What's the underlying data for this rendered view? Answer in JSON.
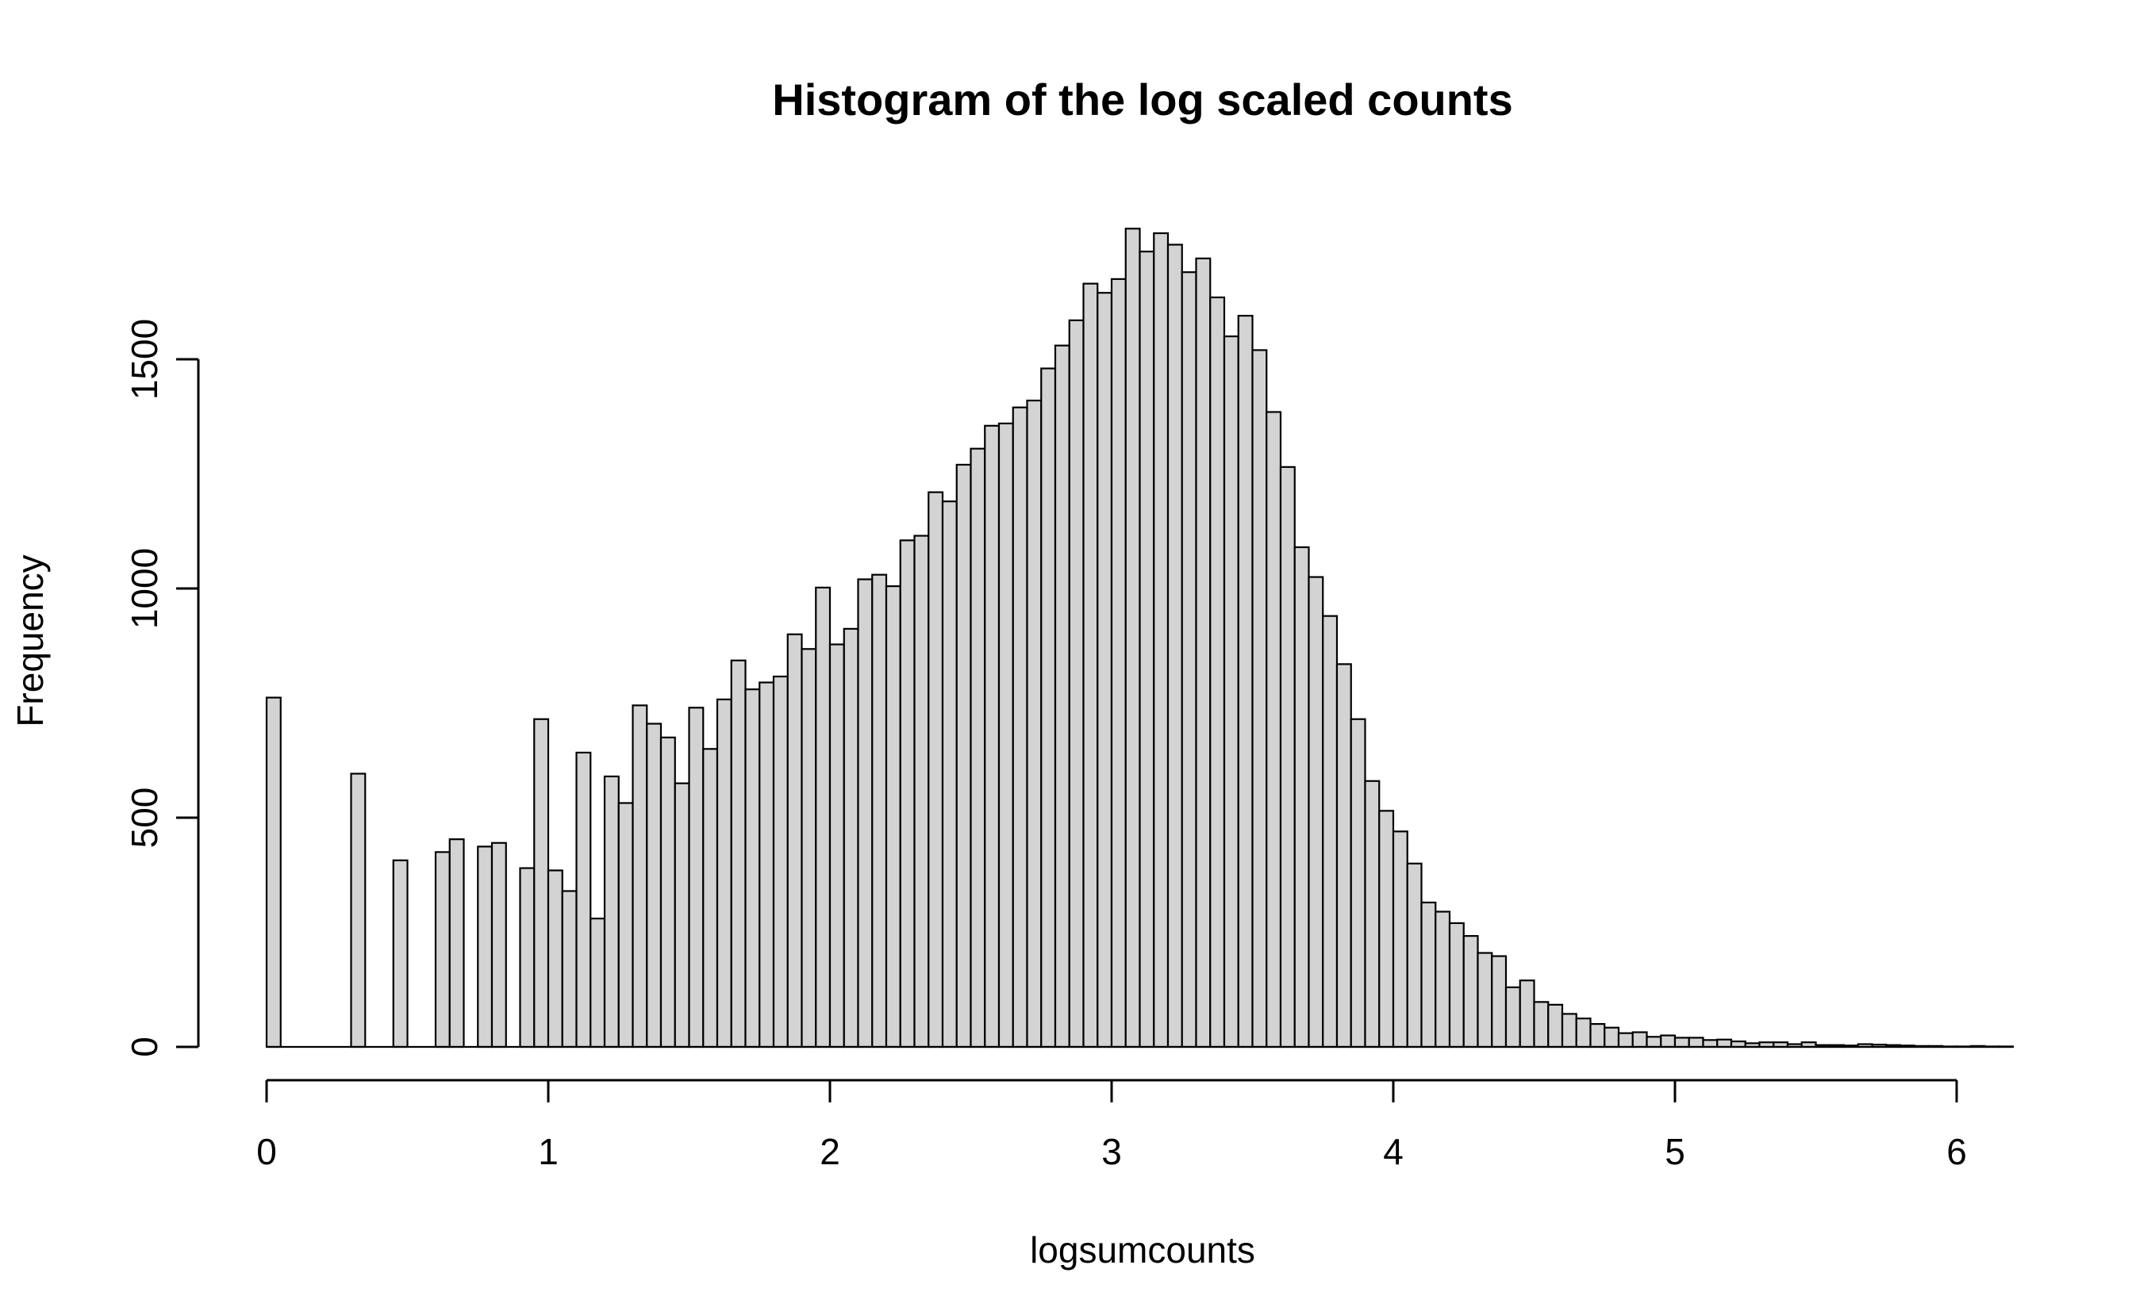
{
  "chart_data": {
    "type": "bar",
    "title": "Histogram of the log scaled counts",
    "xlabel": "logsumcounts",
    "ylabel": "Frequency",
    "xlim": [
      0,
      6.2
    ],
    "ylim": [
      0,
      1800
    ],
    "bin_width": 0.05,
    "x_ticks": [
      0,
      1,
      2,
      3,
      4,
      5,
      6
    ],
    "y_ticks": [
      0,
      500,
      1000,
      1500
    ],
    "bin_starts": [
      0,
      0.3,
      0.45,
      0.6,
      0.65,
      0.75,
      0.8,
      0.9,
      0.95,
      1.0,
      1.05,
      1.1,
      1.15,
      1.2,
      1.25,
      1.3,
      1.35,
      1.4,
      1.45,
      1.5,
      1.55,
      1.6,
      1.65,
      1.7,
      1.75,
      1.8,
      1.85,
      1.9,
      1.95,
      2.0,
      2.05,
      2.1,
      2.15,
      2.2,
      2.25,
      2.3,
      2.35,
      2.4,
      2.45,
      2.5,
      2.55,
      2.6,
      2.65,
      2.7,
      2.75,
      2.8,
      2.85,
      2.9,
      2.95,
      3.0,
      3.05,
      3.1,
      3.15,
      3.2,
      3.25,
      3.3,
      3.35,
      3.4,
      3.45,
      3.5,
      3.55,
      3.6,
      3.65,
      3.7,
      3.75,
      3.8,
      3.85,
      3.9,
      3.95,
      4.0,
      4.05,
      4.1,
      4.15,
      4.2,
      4.25,
      4.3,
      4.35,
      4.4,
      4.45,
      4.5,
      4.55,
      4.6,
      4.65,
      4.7,
      4.75,
      4.8,
      4.85,
      4.9,
      4.95,
      5.0,
      5.05,
      5.1,
      5.15,
      5.2,
      5.25,
      5.3,
      5.35,
      5.4,
      5.45,
      5.5,
      5.55,
      5.6,
      5.65,
      5.7,
      5.75,
      5.8,
      5.85,
      5.9,
      5.95,
      6.0,
      6.05,
      6.1,
      6.15
    ],
    "values": [
      762,
      596,
      407,
      425,
      453,
      437,
      445,
      390,
      715,
      385,
      340,
      642,
      280,
      590,
      532,
      745,
      705,
      675,
      575,
      740,
      650,
      758,
      843,
      780,
      795,
      808,
      900,
      868,
      1002,
      878,
      912,
      1020,
      1030,
      1005,
      1105,
      1115,
      1210,
      1190,
      1270,
      1305,
      1355,
      1360,
      1395,
      1410,
      1480,
      1530,
      1585,
      1665,
      1645,
      1675,
      1785,
      1735,
      1775,
      1750,
      1690,
      1720,
      1635,
      1550,
      1595,
      1520,
      1385,
      1265,
      1090,
      1025,
      940,
      835,
      715,
      580,
      515,
      470,
      400,
      315,
      295,
      270,
      242,
      205,
      198,
      130,
      145,
      98,
      92,
      72,
      62,
      50,
      42,
      30,
      32,
      22,
      25,
      20,
      20,
      15,
      16,
      12,
      8,
      10,
      10,
      6,
      10,
      4,
      4,
      3,
      6,
      5,
      4,
      3,
      2,
      2,
      1,
      1,
      2,
      1,
      1
    ]
  }
}
